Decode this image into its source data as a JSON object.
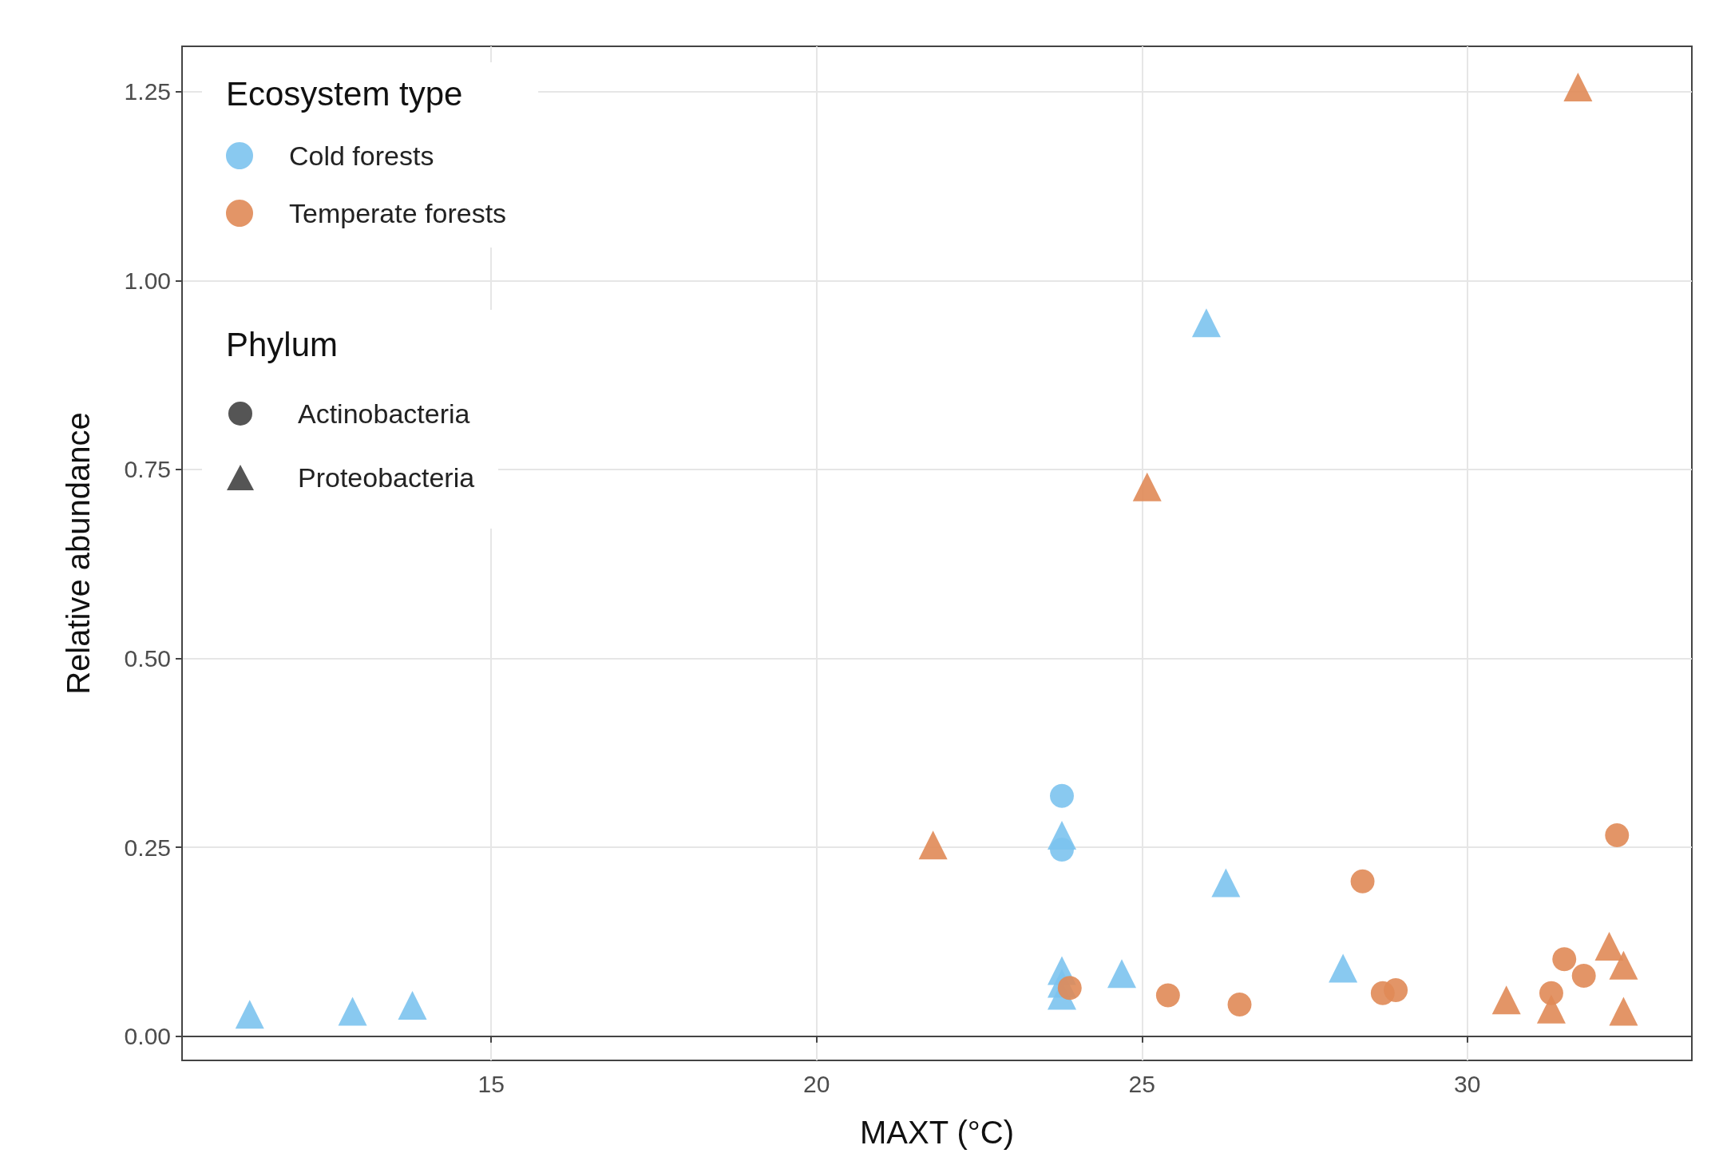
{
  "chart_data": {
    "type": "scatter",
    "xlabel": "MAXT (°C)",
    "ylabel": "Relative abundance",
    "legend_title": [
      "Ecosystem type",
      "Phylum"
    ],
    "annotations": [
      "Actinobacteria",
      "Proteobacteria"
    ],
    "xlim": [
      10.25,
      33.45
    ],
    "xticks": [
      15,
      20,
      25,
      30
    ],
    "ylim": [
      -0.032,
      1.31
    ],
    "yticks": [
      {
        "value": 0,
        "label": "0.00"
      },
      {
        "value": 0.25,
        "label": "0.25"
      },
      {
        "value": 0.5,
        "label": "0.50"
      },
      {
        "value": 0.75,
        "label": "0.75"
      },
      {
        "value": 1,
        "label": "1.00"
      },
      {
        "value": 1.25,
        "label": "1.25"
      }
    ],
    "grid": true,
    "legend": "top left",
    "series": [
      {
        "name": "Cold forests",
        "color": "#7cc3ee",
        "marker": [
          "circle",
          "circle",
          "triangle",
          "triangle",
          "triangle",
          "triangle",
          "triangle",
          "triangle",
          "triangle",
          "triangle",
          "triangle",
          "triangle",
          "triangle"
        ],
        "x": [
          23.77,
          23.77,
          11.29,
          12.87,
          13.79,
          25.99,
          23.77,
          23.77,
          23.77,
          23.77,
          24.69,
          26.29,
          28.09
        ],
        "values": [
          0.318,
          0.247,
          0.029,
          0.033,
          0.041,
          0.944,
          0.266,
          0.087,
          0.07,
          0.054,
          0.083,
          0.203,
          0.09
        ]
      },
      {
        "name": "Temperate forests",
        "color": "#e08a56",
        "marker": [
          "circle",
          "circle",
          "circle",
          "circle",
          "circle",
          "circle",
          "circle",
          "circle",
          "circle",
          "circle",
          "triangle",
          "triangle",
          "triangle",
          "triangle",
          "triangle",
          "triangle",
          "triangle",
          "triangle"
        ],
        "x": [
          23.89,
          25.4,
          26.5,
          28.39,
          28.7,
          28.9,
          31.49,
          31.79,
          31.29,
          32.3,
          21.79,
          25.08,
          31.7,
          30.6,
          31.29,
          32.18,
          32.4,
          32.4
        ],
        "values": [
          0.064,
          0.054,
          0.042,
          0.205,
          0.057,
          0.061,
          0.102,
          0.08,
          0.057,
          0.266,
          0.253,
          0.727,
          1.256,
          0.048,
          0.036,
          0.119,
          0.094,
          0.033
        ]
      }
    ]
  }
}
